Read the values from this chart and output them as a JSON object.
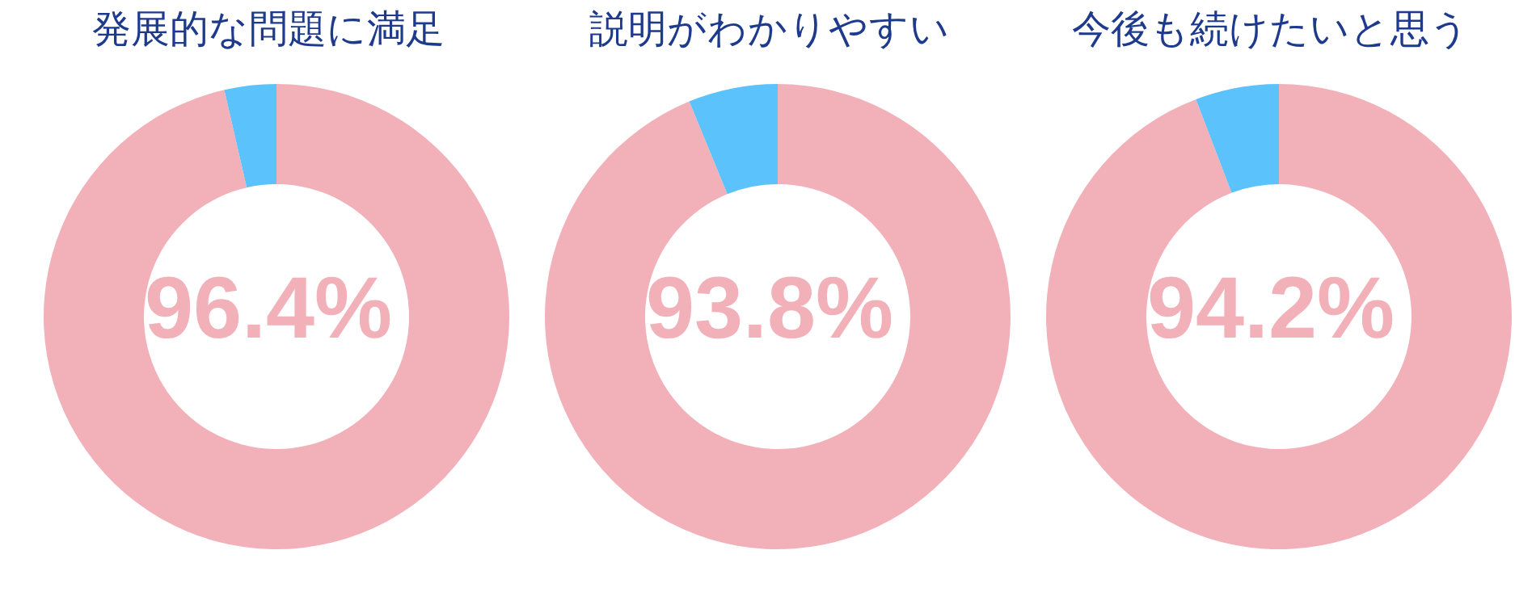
{
  "chart_data": [
    {
      "type": "donut",
      "title": "発展的な問題に満足",
      "categories": [
        null,
        null
      ],
      "values": [
        96.4,
        3.6
      ],
      "colors": [
        "#f2b1b9",
        "#5bc2fc"
      ],
      "value_labels": [
        "96.4%",
        null
      ]
    },
    {
      "type": "donut",
      "title": "説明がわかりやすい",
      "categories": [
        null,
        null
      ],
      "values": [
        93.8,
        6.2
      ],
      "colors": [
        "#f2b1b9",
        "#5bc2fc"
      ],
      "value_labels": [
        "93.8%",
        null
      ]
    },
    {
      "type": "donut",
      "title": "今後も続けたいと思う",
      "categories": [
        null,
        null
      ],
      "values": [
        94.2,
        5.8
      ],
      "colors": [
        "#f2b1b9",
        "#5bc2fc"
      ],
      "value_labels": [
        "94.2%",
        null
      ]
    }
  ]
}
